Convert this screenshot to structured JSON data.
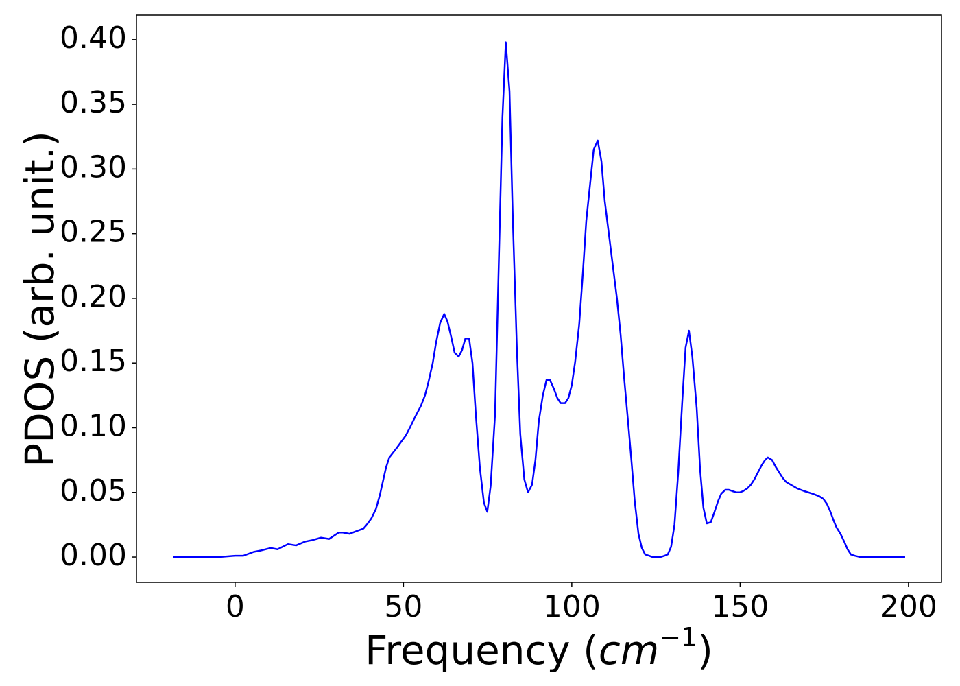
{
  "chart_data": {
    "type": "line",
    "xlabel": [
      "Frequency (",
      "cm",
      "−1",
      ")"
    ],
    "ylabel": "PDOS (arb. unit.)",
    "xlim": [
      -29.3,
      209.8
    ],
    "ylim": [
      -0.0196,
      0.419
    ],
    "xticks": [
      0,
      50,
      100,
      150,
      200
    ],
    "yticks": [
      {
        "value": 0,
        "label": "0.00"
      },
      {
        "value": 0.05,
        "label": "0.05"
      },
      {
        "value": 0.1,
        "label": "0.10"
      },
      {
        "value": 0.15,
        "label": "0.15"
      },
      {
        "value": 0.2,
        "label": "0.20"
      },
      {
        "value": 0.25,
        "label": "0.25"
      },
      {
        "value": 0.3,
        "label": "0.30"
      },
      {
        "value": 0.35,
        "label": "0.35"
      },
      {
        "value": 0.4,
        "label": "0.40"
      }
    ],
    "grid": false,
    "x": [
      -18.5,
      -4.7,
      0,
      2.4,
      5.5,
      7.5,
      10.6,
      12.6,
      15.7,
      18.1,
      20.8,
      22.8,
      25.5,
      27.9,
      30.8,
      32.0,
      34.0,
      36.0,
      38.1,
      39.1,
      40.5,
      41.8,
      43.0,
      44.8,
      45.8,
      47.9,
      50.7,
      51.9,
      53.2,
      55.2,
      56.4,
      57.4,
      58.7,
      59.7,
      60.9,
      62.1,
      63.1,
      64.2,
      65.2,
      66.4,
      67.4,
      68.4,
      69.5,
      70.5,
      71.5,
      72.7,
      73.9,
      74.9,
      75.9,
      77.2,
      78.2,
      79.4,
      80.4,
      81.5,
      82.5,
      83.7,
      84.7,
      85.9,
      87.0,
      88.2,
      89.2,
      90.2,
      91.4,
      92.5,
      93.5,
      94.7,
      95.7,
      96.7,
      98.0,
      99.0,
      100.0,
      101.0,
      102.2,
      103.3,
      104.3,
      105.5,
      106.5,
      107.7,
      108.8,
      109.8,
      111.0,
      112.2,
      113.4,
      114.5,
      115.5,
      116.7,
      117.7,
      118.7,
      119.8,
      120.8,
      121.8,
      123.0,
      124.0,
      126.3,
      127.5,
      128.5,
      129.5,
      130.5,
      131.6,
      132.8,
      133.8,
      134.8,
      135.8,
      137.1,
      138.1,
      139.1,
      140.1,
      141.3,
      142.4,
      143.4,
      144.4,
      145.6,
      146.6,
      147.7,
      148.9,
      149.9,
      150.9,
      152.1,
      153.2,
      154.2,
      155.2,
      156.4,
      157.4,
      158.2,
      159.5,
      160.5,
      161.7,
      162.7,
      163.7,
      165.0,
      167.0,
      169.0,
      171.5,
      173.5,
      174.7,
      175.8,
      176.8,
      177.8,
      178.6,
      179.8,
      180.9,
      181.9,
      182.9,
      184.1,
      185.7,
      199.0
    ],
    "series": [
      {
        "name": "PDOS",
        "color": "#0000ff",
        "values": [
          0,
          0,
          0.001,
          0.001,
          0.004,
          0.005,
          0.007,
          0.006,
          0.01,
          0.009,
          0.012,
          0.013,
          0.015,
          0.014,
          0.019,
          0.019,
          0.018,
          0.02,
          0.022,
          0.025,
          0.03,
          0.037,
          0.048,
          0.069,
          0.077,
          0.084,
          0.094,
          0.1,
          0.107,
          0.117,
          0.125,
          0.135,
          0.15,
          0.166,
          0.181,
          0.188,
          0.182,
          0.17,
          0.158,
          0.155,
          0.16,
          0.169,
          0.169,
          0.15,
          0.11,
          0.069,
          0.042,
          0.035,
          0.055,
          0.11,
          0.215,
          0.34,
          0.398,
          0.36,
          0.26,
          0.16,
          0.095,
          0.06,
          0.05,
          0.056,
          0.075,
          0.105,
          0.125,
          0.137,
          0.137,
          0.13,
          0.123,
          0.119,
          0.119,
          0.123,
          0.133,
          0.151,
          0.18,
          0.22,
          0.26,
          0.29,
          0.315,
          0.322,
          0.306,
          0.275,
          0.25,
          0.225,
          0.2,
          0.172,
          0.14,
          0.105,
          0.075,
          0.043,
          0.018,
          0.007,
          0.002,
          0.001,
          0,
          0,
          0.001,
          0.002,
          0.008,
          0.025,
          0.065,
          0.12,
          0.162,
          0.175,
          0.155,
          0.115,
          0.068,
          0.038,
          0.026,
          0.027,
          0.035,
          0.043,
          0.049,
          0.052,
          0.052,
          0.051,
          0.05,
          0.05,
          0.051,
          0.053,
          0.056,
          0.06,
          0.065,
          0.071,
          0.075,
          0.077,
          0.075,
          0.07,
          0.065,
          0.061,
          0.058,
          0.056,
          0.053,
          0.051,
          0.049,
          0.047,
          0.045,
          0.041,
          0.035,
          0.028,
          0.023,
          0.018,
          0.012,
          0.006,
          0.002,
          0.001,
          0,
          0
        ]
      }
    ]
  }
}
